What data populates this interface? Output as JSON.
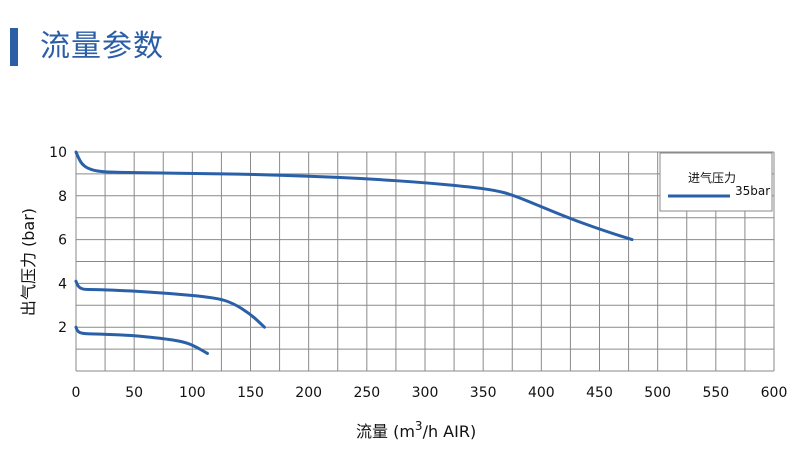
{
  "header": {
    "title": "流量参数"
  },
  "colors": {
    "accent": "#2a60a8",
    "grid": "#8a8a8a",
    "title_bar": "#2b5ea7"
  },
  "chart_data": {
    "type": "line",
    "title": "",
    "xlabel_main": "流量 (m",
    "xlabel_sup": "3",
    "xlabel_tail": "/h AIR)",
    "ylabel": "出气压力 (bar)",
    "xlim": [
      0,
      600
    ],
    "ylim": [
      0,
      10
    ],
    "x_ticks": [
      0,
      50,
      100,
      150,
      200,
      250,
      300,
      350,
      400,
      450,
      500,
      550,
      600
    ],
    "y_ticks": [
      2,
      4,
      6,
      8,
      10
    ],
    "grid": true,
    "legend": {
      "title": "进气压力",
      "placement": "top-right"
    },
    "series": [
      {
        "name": "35bar",
        "x": [
          0,
          2,
          5,
          10,
          18,
          30,
          60,
          100,
          150,
          200,
          250,
          300,
          340,
          360,
          375,
          400,
          430,
          460,
          478
        ],
        "y": [
          10,
          9.75,
          9.45,
          9.25,
          9.12,
          9.08,
          9.05,
          9.02,
          8.98,
          8.9,
          8.78,
          8.6,
          8.4,
          8.25,
          8.05,
          7.5,
          6.85,
          6.3,
          6.0
        ]
      },
      {
        "name": "",
        "x": [
          0,
          1,
          3,
          7,
          15,
          40,
          80,
          120,
          135,
          150,
          162
        ],
        "y": [
          4.1,
          3.95,
          3.8,
          3.72,
          3.72,
          3.68,
          3.55,
          3.35,
          3.1,
          2.6,
          2.0
        ]
      },
      {
        "name": "",
        "x": [
          0,
          1,
          3,
          8,
          25,
          50,
          80,
          95,
          105,
          113
        ],
        "y": [
          2.0,
          1.85,
          1.75,
          1.7,
          1.68,
          1.62,
          1.45,
          1.3,
          1.05,
          0.8
        ]
      }
    ]
  }
}
